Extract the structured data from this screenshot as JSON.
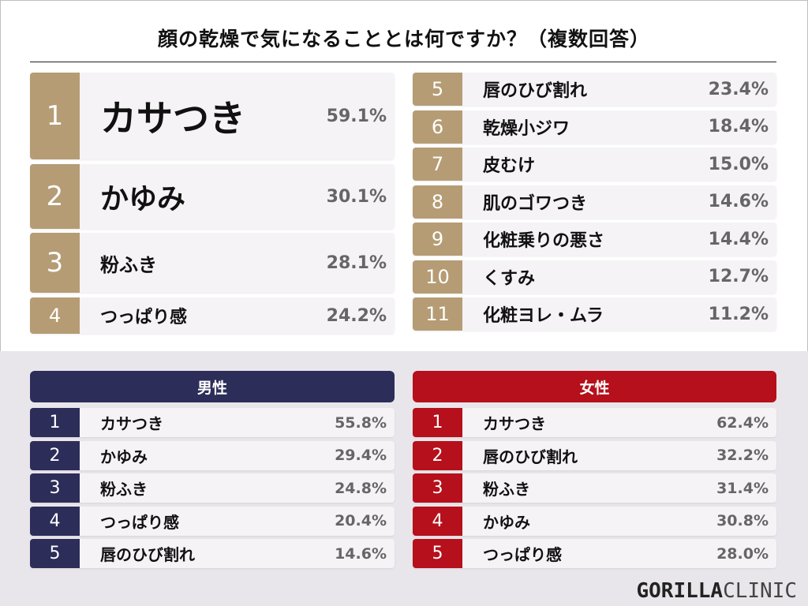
{
  "title": "顔の乾燥で気になることとは何ですか？（複数回答）",
  "overall": [
    {
      "rank": "1",
      "label": "カサつき",
      "value": "59.1%"
    },
    {
      "rank": "2",
      "label": "かゆみ",
      "value": "30.1%"
    },
    {
      "rank": "3",
      "label": "粉ふき",
      "value": "28.1%"
    },
    {
      "rank": "4",
      "label": "つっぱり感",
      "value": "24.2%"
    },
    {
      "rank": "5",
      "label": "唇のひび割れ",
      "value": "23.4%"
    },
    {
      "rank": "6",
      "label": "乾燥小ジワ",
      "value": "18.4%"
    },
    {
      "rank": "7",
      "label": "皮むけ",
      "value": "15.0%"
    },
    {
      "rank": "8",
      "label": "肌のゴワつき",
      "value": "14.6%"
    },
    {
      "rank": "9",
      "label": "化粧乗りの悪さ",
      "value": "14.4%"
    },
    {
      "rank": "10",
      "label": "くすみ",
      "value": "12.7%"
    },
    {
      "rank": "11",
      "label": "化粧ヨレ・ムラ",
      "value": "11.2%"
    }
  ],
  "male": {
    "header": "男性",
    "rows": [
      {
        "rank": "1",
        "label": "カサつき",
        "value": "55.8%"
      },
      {
        "rank": "2",
        "label": "かゆみ",
        "value": "29.4%"
      },
      {
        "rank": "3",
        "label": "粉ふき",
        "value": "24.8%"
      },
      {
        "rank": "4",
        "label": "つっぱり感",
        "value": "20.4%"
      },
      {
        "rank": "5",
        "label": "唇のひび割れ",
        "value": "14.6%"
      }
    ]
  },
  "female": {
    "header": "女性",
    "rows": [
      {
        "rank": "1",
        "label": "カサつき",
        "value": "62.4%"
      },
      {
        "rank": "2",
        "label": "唇のひび割れ",
        "value": "32.2%"
      },
      {
        "rank": "3",
        "label": "粉ふき",
        "value": "31.4%"
      },
      {
        "rank": "4",
        "label": "かゆみ",
        "value": "30.8%"
      },
      {
        "rank": "5",
        "label": "つっぱり感",
        "value": "28.0%"
      }
    ]
  },
  "logo": {
    "bold": "GORILLA",
    "light": "CLINIC"
  },
  "colors": {
    "gold": "#b59c74",
    "navy": "#2d2d5a",
    "red": "#b5101b"
  },
  "chart_data": {
    "type": "table",
    "title": "顔の乾燥で気になることとは何ですか？（複数回答）",
    "tables": [
      {
        "name": "",
        "categories": [
          "カサつき",
          "かゆみ",
          "粉ふき",
          "つっぱり感",
          "唇のひび割れ",
          "乾燥小ジワ",
          "皮むけ",
          "肌のゴワつき",
          "化粧乗りの悪さ",
          "くすみ",
          "化粧ヨレ・ムラ"
        ],
        "values": [
          59.1,
          30.1,
          28.1,
          24.2,
          23.4,
          18.4,
          15.0,
          14.6,
          14.4,
          12.7,
          11.2
        ]
      },
      {
        "name": "男性",
        "categories": [
          "カサつき",
          "かゆみ",
          "粉ふき",
          "つっぱり感",
          "唇のひび割れ"
        ],
        "values": [
          55.8,
          29.4,
          24.8,
          20.4,
          14.6
        ]
      },
      {
        "name": "女性",
        "categories": [
          "カサつき",
          "唇のひび割れ",
          "粉ふき",
          "かゆみ",
          "つっぱり感"
        ],
        "values": [
          62.4,
          32.2,
          31.4,
          30.8,
          28.0
        ]
      }
    ]
  }
}
